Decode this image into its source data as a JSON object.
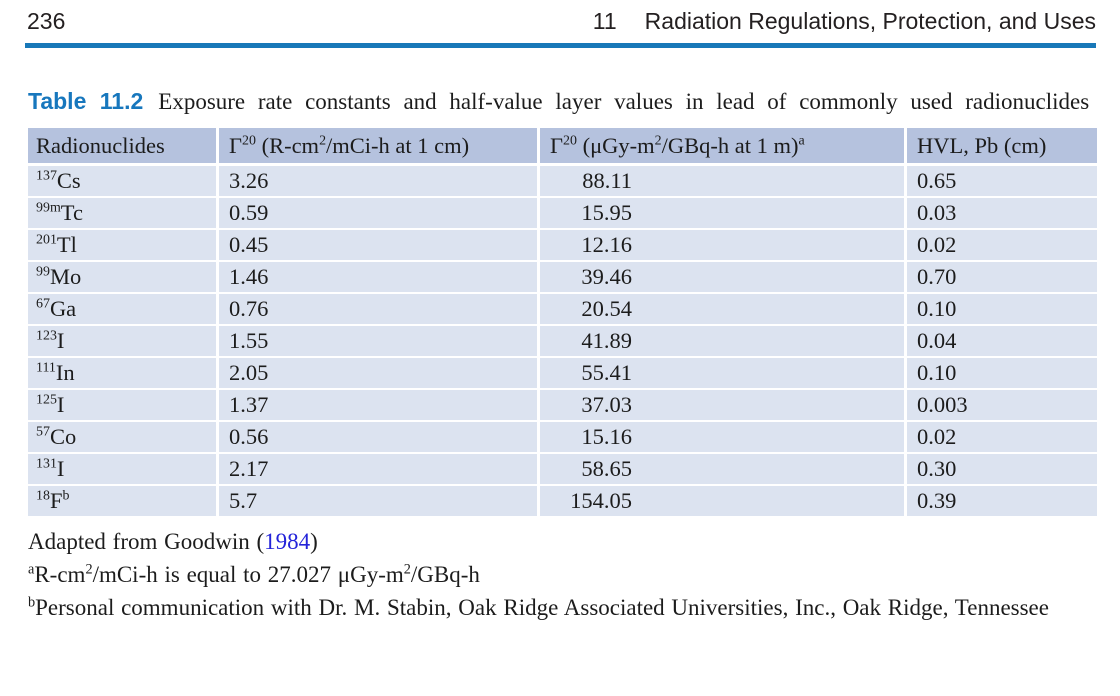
{
  "colors": {
    "accent_blue": "#1878b8",
    "caption_blue": "#1777bd",
    "link_blue": "#2323d9",
    "header_bg": "#b5c2de",
    "row_bg": "#dce3f0",
    "text": "#1c1c1c",
    "bottom_rule": "#d9dcde"
  },
  "page_header": {
    "page_number": "236",
    "chapter_number": "11",
    "chapter_title": "Radiation Regulations, Protection, and Uses"
  },
  "caption": {
    "label": "Table 11.2",
    "text": "Exposure rate constants and half-value layer values in lead of commonly used radionuclides"
  },
  "table": {
    "header": [
      {
        "parts": [
          [
            "t",
            "Radionuclides"
          ]
        ]
      },
      {
        "parts": [
          [
            "t",
            "Γ"
          ],
          [
            "sup",
            "20"
          ],
          [
            "t",
            " (R-cm"
          ],
          [
            "sup",
            "2"
          ],
          [
            "t",
            "/mCi-h at 1 cm)"
          ]
        ]
      },
      {
        "parts": [
          [
            "t",
            "Γ"
          ],
          [
            "sup",
            "20"
          ],
          [
            "t",
            " (μGy-m"
          ],
          [
            "sup",
            "2"
          ],
          [
            "t",
            "/GBq-h at 1 m)"
          ],
          [
            "sup",
            "a"
          ]
        ]
      },
      {
        "parts": [
          [
            "t",
            "HVL, Pb (cm)"
          ]
        ]
      }
    ],
    "rows": [
      {
        "nuclide": [
          [
            "sup",
            "137"
          ],
          [
            "t",
            "Cs"
          ]
        ],
        "gamma_traditional": "3.26",
        "gamma_si": "88.11",
        "hvl": "0.65"
      },
      {
        "nuclide": [
          [
            "sup",
            "99m"
          ],
          [
            "t",
            "Tc"
          ]
        ],
        "gamma_traditional": "0.59",
        "gamma_si": "15.95",
        "hvl": "0.03"
      },
      {
        "nuclide": [
          [
            "sup",
            "201"
          ],
          [
            "t",
            "Tl"
          ]
        ],
        "gamma_traditional": "0.45",
        "gamma_si": "12.16",
        "hvl": "0.02"
      },
      {
        "nuclide": [
          [
            "sup",
            "99"
          ],
          [
            "t",
            "Mo"
          ]
        ],
        "gamma_traditional": "1.46",
        "gamma_si": "39.46",
        "hvl": "0.70"
      },
      {
        "nuclide": [
          [
            "sup",
            "67"
          ],
          [
            "t",
            "Ga"
          ]
        ],
        "gamma_traditional": "0.76",
        "gamma_si": "20.54",
        "hvl": "0.10"
      },
      {
        "nuclide": [
          [
            "sup",
            "123"
          ],
          [
            "t",
            "I"
          ]
        ],
        "gamma_traditional": "1.55",
        "gamma_si": "41.89",
        "hvl": "0.04"
      },
      {
        "nuclide": [
          [
            "sup",
            "111"
          ],
          [
            "t",
            "In"
          ]
        ],
        "gamma_traditional": "2.05",
        "gamma_si": "55.41",
        "hvl": "0.10"
      },
      {
        "nuclide": [
          [
            "sup",
            "125"
          ],
          [
            "t",
            "I"
          ]
        ],
        "gamma_traditional": "1.37",
        "gamma_si": "37.03",
        "hvl": "0.003"
      },
      {
        "nuclide": [
          [
            "sup",
            "57"
          ],
          [
            "t",
            "Co"
          ]
        ],
        "gamma_traditional": "0.56",
        "gamma_si": "15.16",
        "hvl": "0.02"
      },
      {
        "nuclide": [
          [
            "sup",
            "131"
          ],
          [
            "t",
            "I"
          ]
        ],
        "gamma_traditional": "2.17",
        "gamma_si": "58.65",
        "hvl": "0.30"
      },
      {
        "nuclide": [
          [
            "sup",
            "18"
          ],
          [
            "t",
            "F"
          ],
          [
            "sup",
            "b"
          ]
        ],
        "gamma_traditional": "5.7",
        "gamma_si": "154.05",
        "hvl": "0.39"
      }
    ]
  },
  "footnotes": [
    {
      "parts": [
        [
          "t",
          "Adapted from Goodwin ("
        ],
        [
          "link",
          "1984"
        ],
        [
          "t",
          ")"
        ]
      ]
    },
    {
      "parts": [
        [
          "sup",
          "a"
        ],
        [
          "t",
          "R-cm"
        ],
        [
          "sup",
          "2"
        ],
        [
          "t",
          "/mCi-h is equal to 27.027 μGy-m"
        ],
        [
          "sup",
          "2"
        ],
        [
          "t",
          "/GBq-h"
        ]
      ]
    },
    {
      "parts": [
        [
          "sup",
          "b"
        ],
        [
          "t",
          "Personal communication with Dr. M. Stabin, Oak Ridge Associated Universities, Inc., Oak Ridge, Tennessee"
        ]
      ]
    }
  ]
}
